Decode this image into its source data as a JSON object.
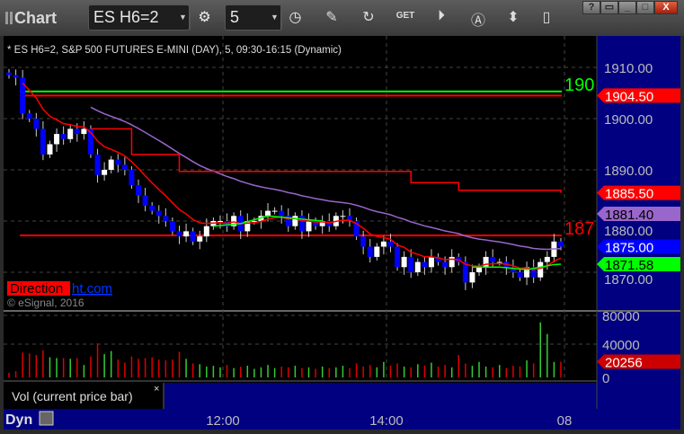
{
  "app": {
    "title": "Chart",
    "symbol": "ES H6=2",
    "interval": "5"
  },
  "toolbar": {
    "icons": [
      "gear-icon",
      "clock-icon",
      "pencil-icon",
      "refresh-icon",
      "get-icon",
      "play-icon",
      "alert-icon",
      "link-icon",
      "comment-icon",
      "bird-icon"
    ]
  },
  "window_buttons": [
    "?",
    "▭",
    "_",
    "□",
    "X"
  ],
  "header": "* ES H6=2, S&P 500 FUTURES E-MINI (DAY), 5, 09:30-16:15 (Dynamic)",
  "watermark": {
    "red": "Direction",
    "blue": "ht.com",
    "copyright": "© eSignal, 2016"
  },
  "volume_panel": {
    "label": "Vol (current price bar)",
    "close": "×",
    "current": "20256",
    "current_color": "#cc0000"
  },
  "bottom": {
    "label": "Dyn"
  },
  "colors": {
    "up": "#ffffff",
    "down": "#0000ff",
    "ema_fast": "#ff0000",
    "ma_slow": "#9966cc",
    "green_line": "#00ff00",
    "scale_bg": "#000080"
  },
  "chart_data": {
    "type": "candlestick",
    "ylim": [
      1864,
      1916
    ],
    "y_ticks": [
      "1910.00",
      "1900.00",
      "1890.00",
      "1880.00",
      "1870.00"
    ],
    "y_tick_values": [
      1910,
      1900,
      1890,
      1880,
      1870
    ],
    "x_ticks": [
      "12:00",
      "14:00",
      "08"
    ],
    "closes": [
      1908.5,
      1908,
      1901,
      1900,
      1898,
      1893,
      1895,
      1897,
      1896,
      1898,
      1897,
      1898,
      1893,
      1889,
      1890,
      1892,
      1891,
      1890,
      1887,
      1885,
      1883,
      1882,
      1881,
      1880,
      1878,
      1877,
      1878,
      1876,
      1877,
      1879,
      1880,
      1880,
      1879,
      1881,
      1878,
      1880,
      1880,
      1881,
      1882,
      1882,
      1881,
      1879,
      1881,
      1878,
      1880,
      1879,
      1880,
      1879,
      1881,
      1881,
      1880,
      1877,
      1875,
      1873,
      1875,
      1876,
      1875,
      1871,
      1873,
      1870,
      1872,
      1871,
      1873,
      1872,
      1871,
      1873,
      1872,
      1868,
      1870,
      1871,
      1873,
      1872,
      1872,
      1871,
      1870,
      1869,
      1871,
      1869,
      1872,
      1873,
      1876,
      1875
    ],
    "volumes": [
      6000,
      8000,
      32000,
      31000,
      29000,
      35000,
      26000,
      25000,
      25000,
      24000,
      25000,
      16000,
      27000,
      44000,
      30000,
      34000,
      23000,
      19000,
      27000,
      24000,
      25000,
      26000,
      23000,
      22000,
      23000,
      33000,
      24000,
      18000,
      17000,
      14000,
      15000,
      13000,
      16000,
      12000,
      14000,
      15000,
      11000,
      13000,
      16000,
      12000,
      14000,
      13000,
      15000,
      12000,
      13000,
      11000,
      14000,
      12000,
      13000,
      15000,
      12000,
      18000,
      14000,
      16000,
      13000,
      20000,
      15000,
      18000,
      14000,
      13000,
      17000,
      15000,
      19000,
      14000,
      16000,
      13000,
      29000,
      18000,
      15000,
      20000,
      14000,
      13000,
      16000,
      12000,
      15000,
      14000,
      22000,
      18000,
      71000,
      56000,
      20000,
      20256
    ],
    "volume_ylim": [
      0,
      80000
    ],
    "volume_ticks": [
      "80000",
      "40000",
      "0"
    ],
    "horizontal_lines": [
      {
        "value": 1905.3,
        "color": "#00ff00",
        "label": "190"
      },
      {
        "value": 1904.5,
        "color": "#ff0000",
        "label": "1904.50"
      },
      {
        "value": 1877.2,
        "color": "#ff0000",
        "label": "187"
      }
    ],
    "step_line": {
      "color": "#ff0000",
      "points": [
        [
          12,
          1898
        ],
        [
          18,
          1893
        ],
        [
          25,
          1889.7
        ],
        [
          57,
          1889.7
        ],
        [
          59,
          1887.5
        ],
        [
          66,
          1886
        ],
        [
          81,
          1885.5
        ]
      ],
      "label": "1885.50"
    },
    "green_segments": [
      [
        [
          30,
          1879
        ],
        [
          34,
          1879.5
        ],
        [
          38,
          1881
        ],
        [
          42,
          1880.5
        ],
        [
          46,
          1880
        ]
      ],
      [
        [
          68,
          1871
        ],
        [
          72,
          1871
        ],
        [
          76,
          1870.5
        ],
        [
          80,
          1871.5
        ],
        [
          81,
          1871.58
        ]
      ]
    ],
    "price_labels": [
      {
        "text": "1904.50",
        "value": 1904.5,
        "bg": "#ff0000",
        "fg": "#ffffff"
      },
      {
        "text": "1885.50",
        "value": 1885.5,
        "bg": "#ff0000",
        "fg": "#ffffff"
      },
      {
        "text": "1881.40",
        "value": 1881.4,
        "bg": "#9966cc",
        "fg": "#000000"
      },
      {
        "text": "1875.00",
        "value": 1875,
        "bg": "#0000ff",
        "fg": "#ffffff"
      },
      {
        "text": "1871.58",
        "value": 1871.58,
        "bg": "#00ff00",
        "fg": "#000000"
      }
    ]
  }
}
